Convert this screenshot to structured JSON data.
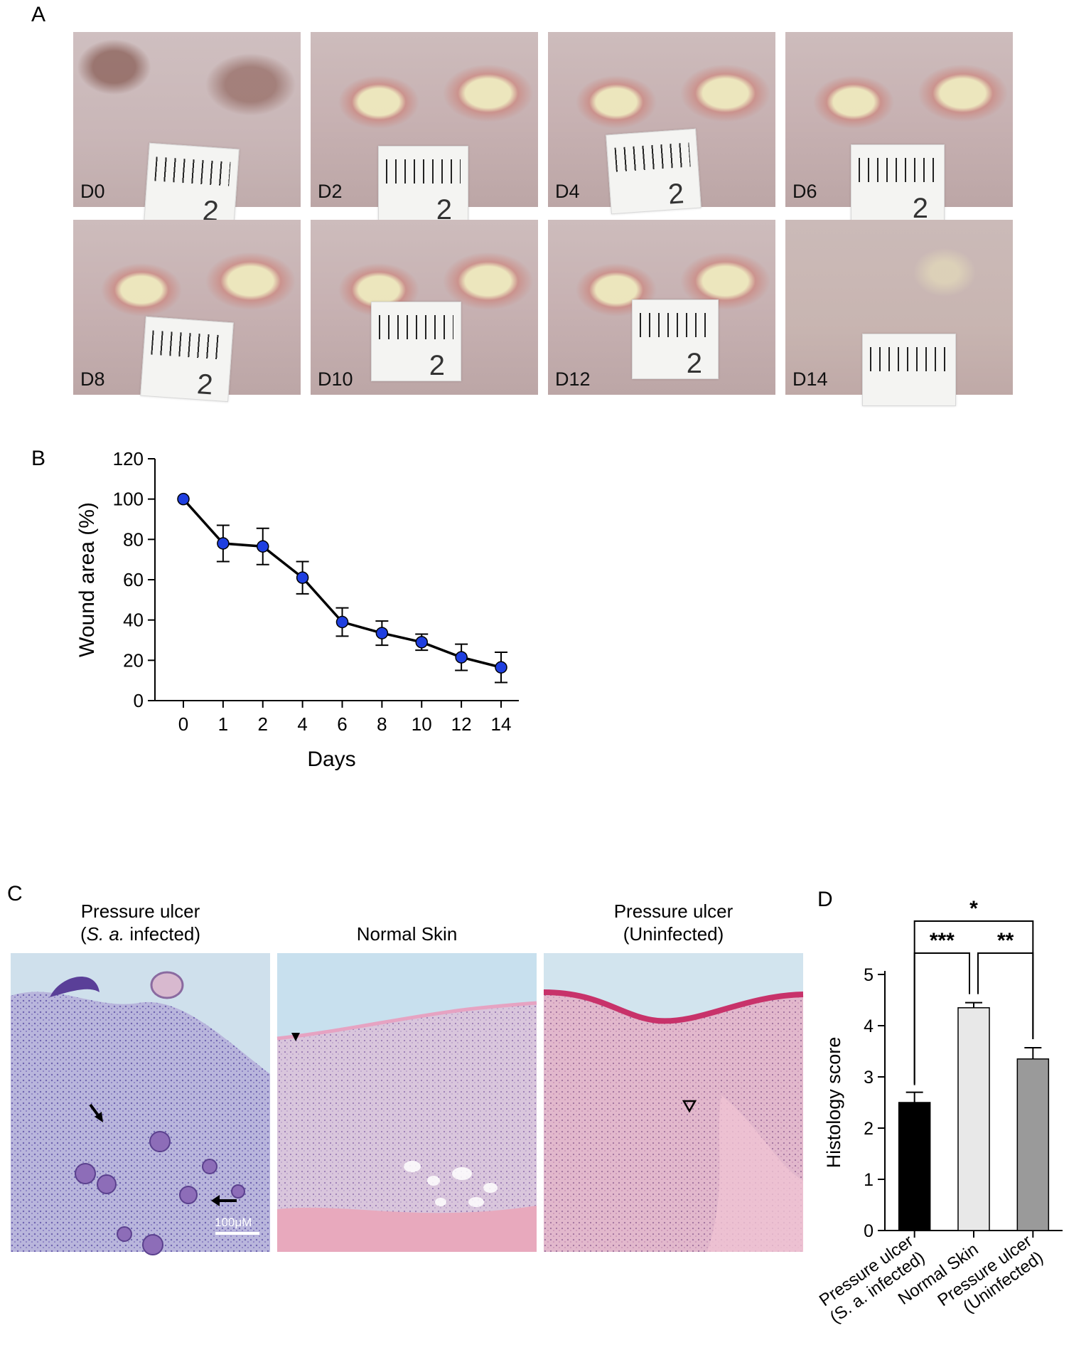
{
  "panel_a": {
    "letter": "A",
    "photos": [
      {
        "label": "D0",
        "ruler_number": "2"
      },
      {
        "label": "D2",
        "ruler_number": "2"
      },
      {
        "label": "D4",
        "ruler_number": "2"
      },
      {
        "label": "D6",
        "ruler_number": "2"
      },
      {
        "label": "D8",
        "ruler_number": "2"
      },
      {
        "label": "D10",
        "ruler_number": "2"
      },
      {
        "label": "D12",
        "ruler_number": "2"
      },
      {
        "label": "D14",
        "ruler_number": ""
      }
    ]
  },
  "panel_b": {
    "letter": "B"
  },
  "panel_c": {
    "letter": "C",
    "images": [
      {
        "title_line1": "Pressure ulcer",
        "title_line2_italic": "S. a.",
        "title_line2_rest": " infected)",
        "title_line2_open": "(",
        "scalebar_label": "100μM"
      },
      {
        "title_line1": "Normal Skin"
      },
      {
        "title_line1": "Pressure ulcer",
        "title_line2": "(Uninfected)"
      }
    ]
  },
  "panel_d": {
    "letter": "D"
  },
  "chart_data": [
    {
      "type": "line",
      "panel": "B",
      "xlabel": "Days",
      "ylabel": "Wound area (%)",
      "categories": [
        "0",
        "1",
        "2",
        "4",
        "6",
        "8",
        "10",
        "12",
        "14"
      ],
      "values": [
        100,
        78,
        76.5,
        61,
        39,
        33.5,
        29,
        21.5,
        16.5
      ],
      "errors": [
        0,
        9,
        9,
        8,
        7,
        6,
        4,
        6.5,
        7.5
      ],
      "ylim": [
        0,
        120
      ],
      "yticks": [
        0,
        20,
        40,
        60,
        80,
        100,
        120
      ],
      "marker_color": "#1f3fe0",
      "line_color": "#000000",
      "grid": false
    },
    {
      "type": "bar",
      "panel": "D",
      "ylabel": "Histology score",
      "categories": [
        "Pressure ulcer\n(S. a. infected)",
        "Normal Skin",
        "Pressure ulcer\n(Uninfected)"
      ],
      "values": [
        2.5,
        4.35,
        3.35
      ],
      "errors": [
        0.2,
        0.1,
        0.22
      ],
      "colors": [
        "#000000",
        "#e8e8e8",
        "#9a9a9a"
      ],
      "ylim": [
        0,
        5
      ],
      "yticks": [
        0,
        1,
        2,
        3,
        4,
        5
      ],
      "grid": false,
      "significance": [
        {
          "from": 0,
          "to": 2,
          "label": "*"
        },
        {
          "from": 0,
          "to": 1,
          "label": "***"
        },
        {
          "from": 1,
          "to": 2,
          "label": "**"
        }
      ]
    }
  ]
}
